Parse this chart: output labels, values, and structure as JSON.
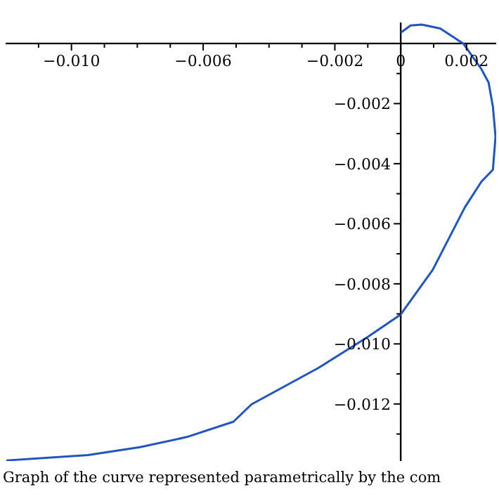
{
  "chart_data": {
    "type": "line",
    "x": [
      0,
      0.0003,
      0.00064,
      0.0012,
      0.0019,
      0.00245,
      0.00267,
      0.0028,
      0.00288,
      0.0028,
      0.00245,
      0.00195,
      0.00097,
      0,
      -0.00102,
      -0.0025,
      -0.00453,
      -0.00508,
      -0.0065,
      -0.00792,
      -0.0095,
      -0.01198
    ],
    "series": [
      {
        "color": "#1f55c0",
        "values": [
          0.00036,
          0.0006,
          0.00063,
          0.0005,
          0,
          -0.00085,
          -0.0013,
          -0.0021,
          -0.0031,
          -0.0042,
          -0.0046,
          -0.00545,
          -0.00754,
          -0.00902,
          -0.00978,
          -0.0108,
          -0.01201,
          -0.01259,
          -0.0131,
          -0.01344,
          -0.0137,
          -0.01388
        ]
      }
    ],
    "xlim": [
      -0.012,
      0.0029
    ],
    "ylim": [
      -0.0139,
      0.0007
    ],
    "xticks": [
      {
        "value": -0.011,
        "label": null
      },
      {
        "value": -0.01,
        "label": "−0.010"
      },
      {
        "value": -0.009,
        "label": null
      },
      {
        "value": -0.008,
        "label": null
      },
      {
        "value": -0.007,
        "label": null
      },
      {
        "value": -0.006,
        "label": "−0.006"
      },
      {
        "value": -0.005,
        "label": null
      },
      {
        "value": -0.004,
        "label": null
      },
      {
        "value": -0.003,
        "label": null
      },
      {
        "value": -0.002,
        "label": "−0.002"
      },
      {
        "value": -0.001,
        "label": null
      },
      {
        "value": 0,
        "label": "0"
      },
      {
        "value": 0.001,
        "label": null
      },
      {
        "value": 0.002,
        "label": "0.002"
      }
    ],
    "yticks": [
      {
        "value": -0.001,
        "label": null
      },
      {
        "value": -0.002,
        "label": "−0.002"
      },
      {
        "value": -0.003,
        "label": null
      },
      {
        "value": -0.004,
        "label": "−0.004"
      },
      {
        "value": -0.005,
        "label": null
      },
      {
        "value": -0.006,
        "label": "−0.006"
      },
      {
        "value": -0.007,
        "label": null
      },
      {
        "value": -0.008,
        "label": "−0.008"
      },
      {
        "value": -0.009,
        "label": null
      },
      {
        "value": -0.01,
        "label": "−0.010"
      },
      {
        "value": -0.011,
        "label": null
      },
      {
        "value": -0.012,
        "label": "−0.012"
      },
      {
        "value": -0.013,
        "label": null
      }
    ],
    "marker": "none",
    "line_style": "solid",
    "grid": false,
    "legend": false,
    "annotations": [
      "Graph of the curve represented parametrically by the com"
    ]
  }
}
